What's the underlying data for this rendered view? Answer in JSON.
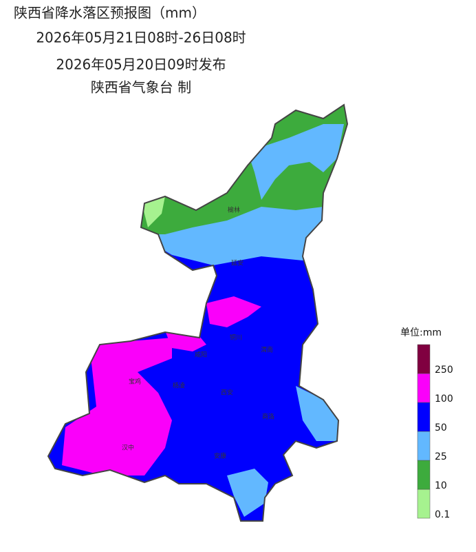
{
  "header": {
    "title": "陕西省降水落区预报图（mm）",
    "period": "2026年05月21日08时-26日08时",
    "issued": "2026年05月20日09时发布",
    "agency": "陕西省气象台 制"
  },
  "cities": [
    "榆林",
    "延安",
    "铜川",
    "渭南",
    "咸阳",
    "宝鸡",
    "杨凌",
    "西安",
    "商洛",
    "汉中",
    "安康"
  ],
  "legend": {
    "unit": "单位:mm",
    "boundaries": [
      0.1,
      10,
      25,
      50,
      100,
      250
    ],
    "colors": [
      "#a6f28f",
      "#3dab3d",
      "#62b8ff",
      "#0000fe",
      "#fa00fa",
      "#800040"
    ]
  }
}
